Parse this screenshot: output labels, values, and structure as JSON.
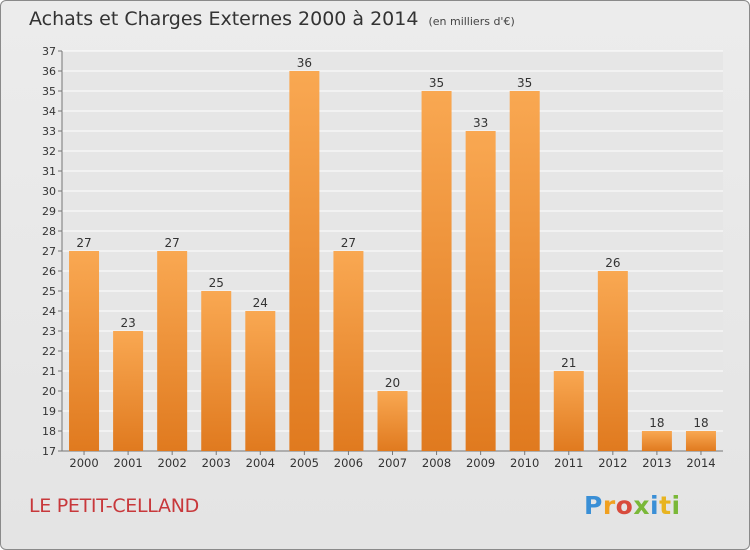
{
  "chart_data": {
    "type": "bar",
    "title": "Achats et Charges Externes 2000 à 2014",
    "subtitle": "(en milliers d'€)",
    "categories": [
      "2000",
      "2001",
      "2002",
      "2003",
      "2004",
      "2005",
      "2006",
      "2007",
      "2008",
      "2009",
      "2010",
      "2011",
      "2012",
      "2013",
      "2014"
    ],
    "values": [
      27,
      23,
      27,
      25,
      24,
      36,
      27,
      20,
      35,
      33,
      35,
      21,
      26,
      18,
      18
    ],
    "xlabel": "",
    "ylabel": "",
    "ylim": [
      17,
      37
    ],
    "yticks": [
      17,
      18,
      19,
      20,
      21,
      22,
      23,
      24,
      25,
      26,
      27,
      28,
      29,
      30,
      31,
      32,
      33,
      34,
      35,
      36,
      37
    ],
    "grid": true,
    "legend": "none",
    "colors": {
      "bar_light": "#f9a852",
      "bar_dark": "#e07a1f",
      "grid": "#ffffff"
    }
  },
  "commune": "LE PETIT-CELLAND",
  "logo": {
    "letters": [
      "P",
      "r",
      "o",
      "x",
      "i",
      "t",
      "i"
    ],
    "colors": [
      "#3a8fd6",
      "#f0a020",
      "#d84b3c",
      "#7ab838",
      "#3a8fd6",
      "#e8b420",
      "#7ab838"
    ]
  },
  "colors": {
    "commune": "#c8383b",
    "title": "#333333"
  }
}
